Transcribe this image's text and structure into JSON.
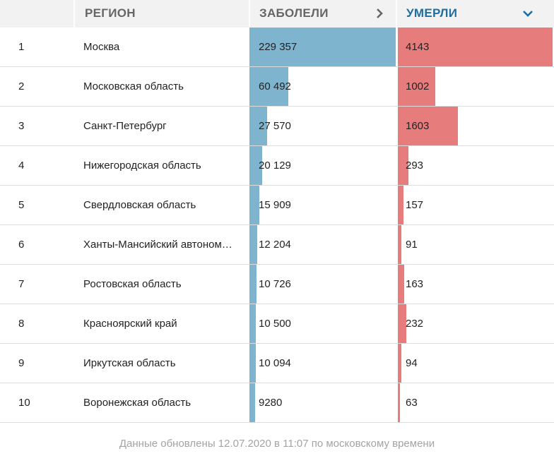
{
  "header": {
    "num_label": "",
    "region_label": "РЕГИОН",
    "cases_label": "ЗАБОЛЕЛИ",
    "deaths_label": "УМЕРЛИ",
    "cases_icon": "chevron-right-icon",
    "deaths_icon": "chevron-down-icon",
    "deaths_sorted": true
  },
  "colors": {
    "cases_bar": "#7fb4cf",
    "deaths_bar": "#e77c7c",
    "active_header": "#1d6fa3",
    "header_text": "#666666",
    "header_bg": "#f2f2f2"
  },
  "rows": [
    {
      "num": "1",
      "region": "Москва",
      "cases": "229 357",
      "deaths": "4143",
      "cases_value": 229357,
      "deaths_value": 4143
    },
    {
      "num": "2",
      "region": "Московская область",
      "cases": "60 492",
      "deaths": "1002",
      "cases_value": 60492,
      "deaths_value": 1002
    },
    {
      "num": "3",
      "region": "Санкт-Петербург",
      "cases": "27 570",
      "deaths": "1603",
      "cases_value": 27570,
      "deaths_value": 1603
    },
    {
      "num": "4",
      "region": "Нижегородская область",
      "cases": "20 129",
      "deaths": "293",
      "cases_value": 20129,
      "deaths_value": 293
    },
    {
      "num": "5",
      "region": "Свердловская область",
      "cases": "15 909",
      "deaths": "157",
      "cases_value": 15909,
      "deaths_value": 157
    },
    {
      "num": "6",
      "region": "Ханты-Мансийский автоном…",
      "cases": "12 204",
      "deaths": "91",
      "cases_value": 12204,
      "deaths_value": 91
    },
    {
      "num": "7",
      "region": "Ростовская область",
      "cases": "10 726",
      "deaths": "163",
      "cases_value": 10726,
      "deaths_value": 163
    },
    {
      "num": "8",
      "region": "Красноярский край",
      "cases": "10 500",
      "deaths": "232",
      "cases_value": 10500,
      "deaths_value": 232
    },
    {
      "num": "9",
      "region": "Иркутская область",
      "cases": "10 094",
      "deaths": "94",
      "cases_value": 10094,
      "deaths_value": 94
    },
    {
      "num": "10",
      "region": "Воронежская область",
      "cases": "9280",
      "deaths": "63",
      "cases_value": 9280,
      "deaths_value": 63
    }
  ],
  "footer": {
    "text": "Данные обновлены 12.07.2020 в 11:07 по московскому времени"
  }
}
